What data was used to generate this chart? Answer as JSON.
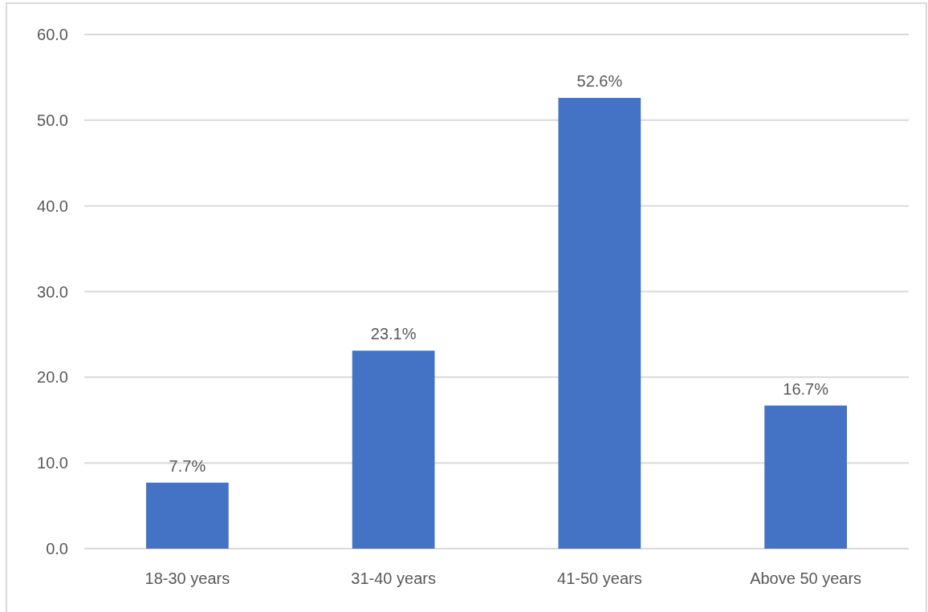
{
  "chart_data": {
    "type": "bar",
    "categories": [
      "18-30 years",
      "31-40 years",
      "41-50 years",
      "Above 50 years"
    ],
    "values": [
      7.7,
      23.1,
      52.6,
      16.7
    ],
    "value_labels": [
      "7.7%",
      "23.1%",
      "52.6%",
      "16.7%"
    ],
    "color": "#4472c4",
    "ylim": [
      0,
      60
    ],
    "yticks": [
      {
        "value": 0,
        "label": "0.0"
      },
      {
        "value": 10,
        "label": "10.0"
      },
      {
        "value": 20,
        "label": "20.0"
      },
      {
        "value": 30,
        "label": "30.0"
      },
      {
        "value": 40,
        "label": "40.0"
      },
      {
        "value": 50,
        "label": "50.0"
      },
      {
        "value": 60,
        "label": "60.0"
      }
    ],
    "grid": "y"
  }
}
